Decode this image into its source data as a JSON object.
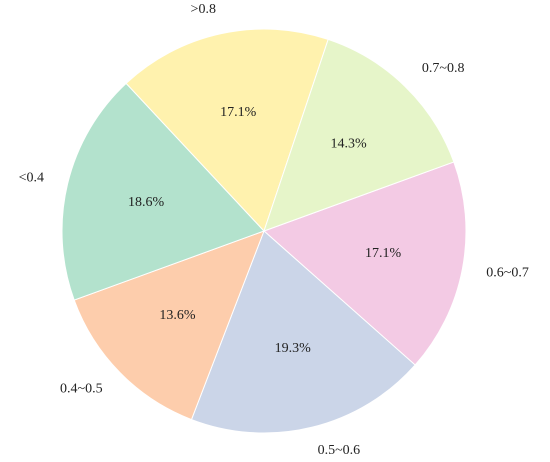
{
  "chart_data": {
    "type": "pie",
    "title": "",
    "categories": [
      "0.6~0.7",
      "0.5~0.6",
      "0.4~0.5",
      "<0.4",
      ">0.8",
      "0.7~0.8"
    ],
    "values": [
      17.1,
      19.3,
      13.6,
      18.6,
      17.1,
      14.3
    ],
    "value_labels": [
      "17.1%",
      "19.3%",
      "13.6%",
      "18.6%",
      "17.1%",
      "14.3%"
    ],
    "colors": [
      "#f3cae4",
      "#cbd5e8",
      "#fdcdac",
      "#b3e2cd",
      "#fff2ae",
      "#e6f5c9"
    ],
    "start_angle_deg": 20,
    "direction": "clockwise",
    "legend": "none"
  }
}
